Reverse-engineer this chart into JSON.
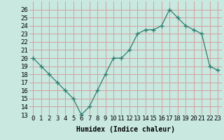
{
  "x": [
    0,
    1,
    2,
    3,
    4,
    5,
    6,
    7,
    8,
    9,
    10,
    11,
    12,
    13,
    14,
    15,
    16,
    17,
    18,
    19,
    20,
    21,
    22,
    23
  ],
  "y": [
    20,
    19,
    18,
    17,
    16,
    15,
    13,
    14,
    16,
    18,
    20,
    20,
    21,
    23,
    23.5,
    23.5,
    24,
    26,
    25,
    24,
    23.5,
    23,
    19,
    18.5
  ],
  "line_color": "#2e7d6e",
  "marker": "+",
  "marker_size": 4,
  "bg_color": "#c8e8e0",
  "grid_color": "#d4a0a0",
  "xlabel": "Humidex (Indice chaleur)",
  "ylim": [
    13,
    27
  ],
  "xlim": [
    -0.5,
    23.5
  ],
  "yticks": [
    13,
    14,
    15,
    16,
    17,
    18,
    19,
    20,
    21,
    22,
    23,
    24,
    25,
    26
  ],
  "xticks": [
    0,
    1,
    2,
    3,
    4,
    5,
    6,
    7,
    8,
    9,
    10,
    11,
    12,
    13,
    14,
    15,
    16,
    17,
    18,
    19,
    20,
    21,
    22,
    23
  ],
  "label_fontsize": 7,
  "tick_fontsize": 6.5
}
